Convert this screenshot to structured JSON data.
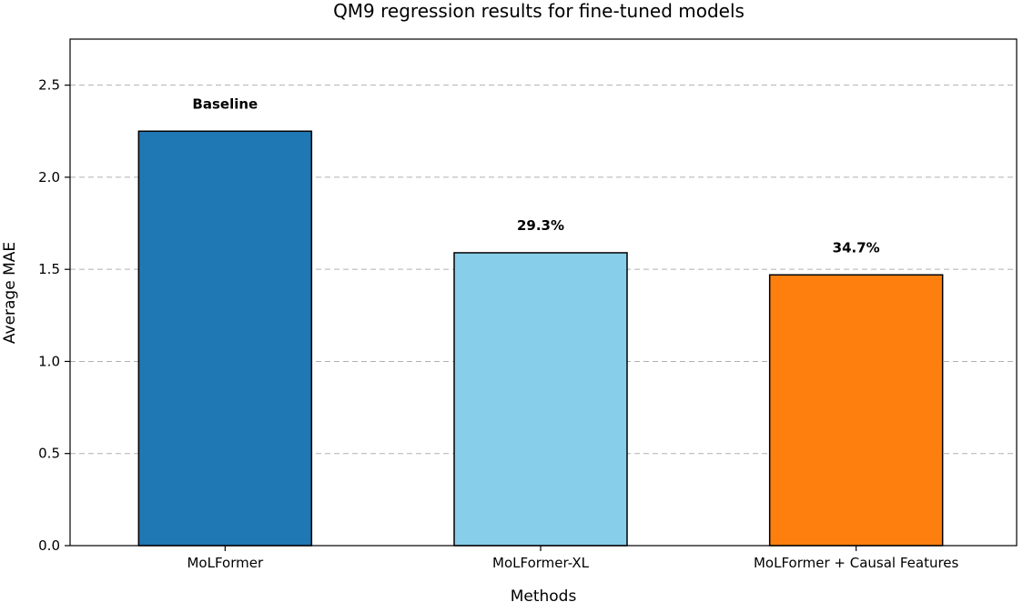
{
  "chart_data": {
    "type": "bar",
    "title": "QM9 regression results for fine-tuned models",
    "xlabel": "Methods",
    "ylabel": "Average MAE",
    "categories": [
      "MoLFormer",
      "MoLFormer-XL",
      "MoLFormer + Causal Features"
    ],
    "values": [
      2.25,
      1.59,
      1.47
    ],
    "annotations": [
      "Baseline",
      "29.3%",
      "34.7%"
    ],
    "colors": [
      "#1f77b4",
      "#87ceeb",
      "#ff7f0e"
    ],
    "ylim": [
      0,
      2.75
    ],
    "yticks": [
      0.0,
      0.5,
      1.0,
      1.5,
      2.0,
      2.5
    ],
    "ytick_labels": [
      "0.0",
      "0.5",
      "1.0",
      "1.5",
      "2.0",
      "2.5"
    ],
    "grid": "y-dashed",
    "legend": "none"
  }
}
